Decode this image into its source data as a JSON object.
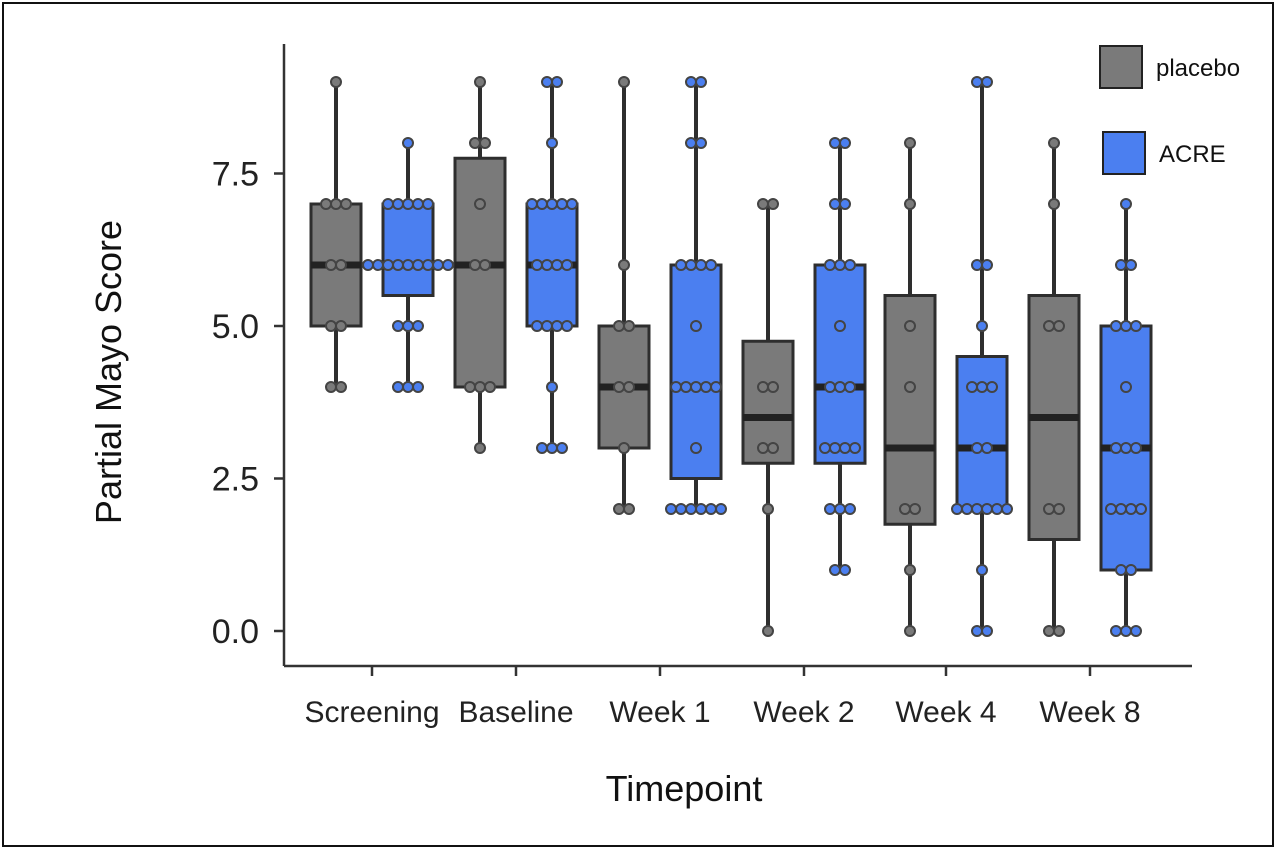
{
  "chart_data": {
    "type": "box",
    "xlabel": "Timepoint",
    "ylabel": "Partial Mayo Score",
    "ylim": [
      -0.6,
      9.4
    ],
    "yticks": [
      0.0,
      2.5,
      5.0,
      7.5
    ],
    "ytick_labels": [
      "0.0",
      "2.5",
      "5.0",
      "7.5"
    ],
    "categories": [
      "Screening",
      "Baseline",
      "Week 1",
      "Week 2",
      "Week 4",
      "Week 8"
    ],
    "legend": {
      "placement": "top-right"
    },
    "series": [
      {
        "name": "placebo",
        "color": "#7a7a7a",
        "boxes": [
          {
            "q1": 5.0,
            "median": 6.0,
            "q3": 7.0,
            "whisker_low": 4.0,
            "whisker_high": 9.0,
            "points": [
              9,
              7,
              7,
              7,
              6,
              6,
              5,
              5,
              4,
              4
            ]
          },
          {
            "q1": 4.0,
            "median": 6.0,
            "q3": 7.75,
            "whisker_low": 3.0,
            "whisker_high": 9.0,
            "points": [
              9,
              8,
              8,
              7,
              6,
              6,
              4,
              4,
              4,
              3
            ]
          },
          {
            "q1": 3.0,
            "median": 4.0,
            "q3": 5.0,
            "whisker_low": 2.0,
            "whisker_high": 9.0,
            "points": [
              9,
              6,
              5,
              5,
              4,
              4,
              3,
              2,
              2
            ]
          },
          {
            "q1": 2.75,
            "median": 3.5,
            "q3": 4.75,
            "whisker_low": 0.0,
            "whisker_high": 7.0,
            "points": [
              7,
              7,
              4,
              4,
              3,
              3,
              2,
              0
            ]
          },
          {
            "q1": 1.75,
            "median": 3.0,
            "q3": 5.5,
            "whisker_low": 0.0,
            "whisker_high": 8.0,
            "points": [
              8,
              7,
              5,
              4,
              2,
              2,
              1,
              0
            ]
          },
          {
            "q1": 1.5,
            "median": 3.5,
            "q3": 5.5,
            "whisker_low": 0.0,
            "whisker_high": 8.0,
            "points": [
              8,
              7,
              5,
              5,
              2,
              2,
              0,
              0
            ]
          }
        ]
      },
      {
        "name": "ACRE",
        "color": "#4b7ff0",
        "boxes": [
          {
            "q1": 5.5,
            "median": 6.0,
            "q3": 7.0,
            "whisker_low": 4.0,
            "whisker_high": 8.0,
            "points": [
              8,
              7,
              7,
              7,
              7,
              7,
              6,
              6,
              6,
              6,
              6,
              6,
              6,
              6,
              6,
              5,
              5,
              5,
              4,
              4,
              4
            ]
          },
          {
            "q1": 5.0,
            "median": 6.0,
            "q3": 7.0,
            "whisker_low": 3.0,
            "whisker_high": 9.0,
            "points": [
              9,
              9,
              8,
              7,
              7,
              7,
              7,
              7,
              6,
              6,
              6,
              6,
              5,
              5,
              5,
              5,
              4,
              3,
              3,
              3
            ]
          },
          {
            "q1": 2.5,
            "median": 4.0,
            "q3": 6.0,
            "whisker_low": 2.0,
            "whisker_high": 9.0,
            "points": [
              9,
              9,
              8,
              8,
              6,
              6,
              6,
              6,
              5,
              4,
              4,
              4,
              4,
              4,
              3,
              2,
              2,
              2,
              2,
              2,
              2
            ]
          },
          {
            "q1": 2.75,
            "median": 4.0,
            "q3": 6.0,
            "whisker_low": 1.0,
            "whisker_high": 8.0,
            "points": [
              8,
              8,
              7,
              7,
              6,
              6,
              6,
              5,
              4,
              4,
              4,
              3,
              3,
              3,
              3,
              2,
              2,
              2,
              1,
              1
            ]
          },
          {
            "q1": 2.0,
            "median": 3.0,
            "q3": 4.5,
            "whisker_low": 0.0,
            "whisker_high": 9.0,
            "points": [
              9,
              9,
              6,
              6,
              5,
              4,
              4,
              4,
              3,
              3,
              2,
              2,
              2,
              2,
              2,
              2,
              1,
              0,
              0
            ]
          },
          {
            "q1": 1.0,
            "median": 3.0,
            "q3": 5.0,
            "whisker_low": 0.0,
            "whisker_high": 7.0,
            "points": [
              7,
              6,
              6,
              5,
              5,
              5,
              4,
              3,
              3,
              3,
              2,
              2,
              2,
              2,
              1,
              1,
              0,
              0,
              0
            ]
          }
        ]
      }
    ]
  }
}
